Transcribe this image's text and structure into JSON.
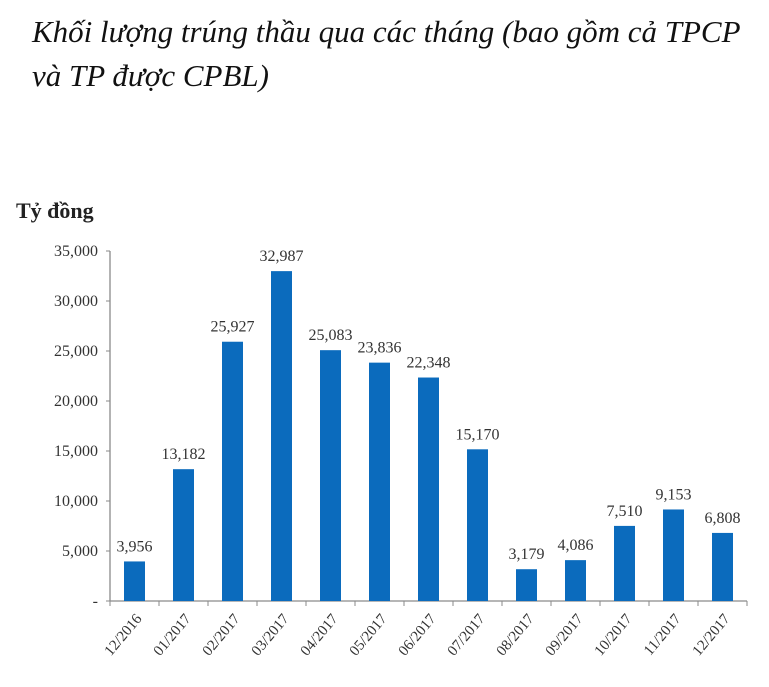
{
  "header": {
    "title": "Khối lượng trúng thầu qua các tháng (bao gồm cả TPCP và TP được CPBL)"
  },
  "chart_data": {
    "type": "bar",
    "title": "Khối lượng trúng thầu qua các tháng (bao gồm cả TPCP và TP được CPBL)",
    "xlabel": "",
    "ylabel": "Tỷ đồng",
    "categories": [
      "12/2016",
      "01/2017",
      "02/2017",
      "03/2017",
      "04/2017",
      "05/2017",
      "06/2017",
      "07/2017",
      "08/2017",
      "09/2017",
      "10/2017",
      "11/2017",
      "12/2017"
    ],
    "values": [
      3956,
      13182,
      25927,
      32987,
      25083,
      23836,
      22348,
      15170,
      3179,
      4086,
      7510,
      9153,
      6808
    ],
    "value_labels": [
      "3,956",
      "13,182",
      "25,927",
      "32,987",
      "25,083",
      "23,836",
      "22,348",
      "15,170",
      "3,179",
      "4,086",
      "7,510",
      "9,153",
      "6,808"
    ],
    "yticks": [
      "-",
      "5,000",
      "10,000",
      "15,000",
      "20,000",
      "25,000",
      "30,000",
      "35,000"
    ],
    "ylim": [
      0,
      35000
    ],
    "grid": false,
    "legend": null,
    "bar_color": "#0b6bbd"
  }
}
